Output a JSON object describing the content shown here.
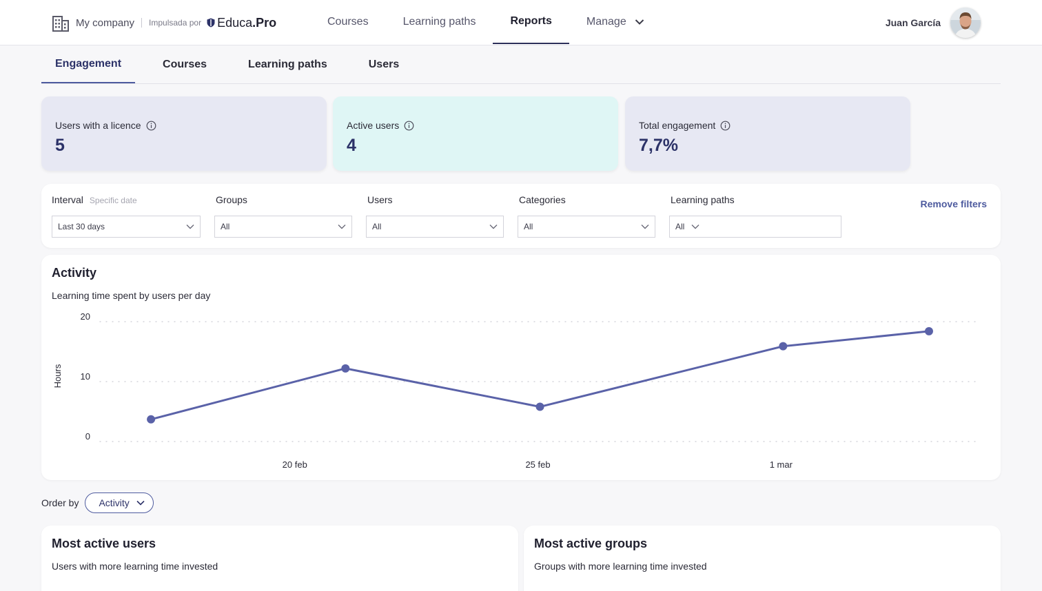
{
  "brand": {
    "company": "My company",
    "powered_by": "Impulsada por",
    "logo_light": "Educa",
    "logo_bold": ".Pro"
  },
  "nav": {
    "items": [
      {
        "label": "Courses"
      },
      {
        "label": "Learning paths"
      },
      {
        "label": "Reports"
      },
      {
        "label": "Manage"
      }
    ],
    "active": "Reports"
  },
  "user": {
    "name": "Juan García"
  },
  "subtabs": {
    "items": [
      {
        "label": "Engagement"
      },
      {
        "label": "Courses"
      },
      {
        "label": "Learning paths"
      },
      {
        "label": "Users"
      }
    ],
    "active": "Engagement"
  },
  "kpis": [
    {
      "label": "Users with a licence",
      "value": "5",
      "color": "#e7e8f3"
    },
    {
      "label": "Active users",
      "value": "4",
      "color": "#dff6f5"
    },
    {
      "label": "Total engagement",
      "value": "7,7%",
      "color": "#e7e8f3"
    }
  ],
  "filters": {
    "interval": {
      "label": "Interval",
      "hint": "Specific date",
      "value": "Last 30 days"
    },
    "groups": {
      "label": "Groups",
      "value": "All"
    },
    "users": {
      "label": "Users",
      "value": "All"
    },
    "categories": {
      "label": "Categories",
      "value": "All"
    },
    "learning_paths": {
      "label": "Learning paths",
      "value": "All"
    },
    "remove_label": "Remove filters"
  },
  "activity": {
    "title": "Activity",
    "subtitle": "Learning time spent by users per day"
  },
  "chart_data": {
    "type": "line",
    "title": "Activity",
    "subtitle": "Learning time spent by users per day",
    "xlabel": "",
    "ylabel": "Hours",
    "x_axis_type": "date",
    "x_ticks": [
      "20 feb",
      "25 feb",
      "1 mar"
    ],
    "x": [
      "17 feb",
      "21 feb",
      "25 feb",
      "1 mar",
      "4 mar"
    ],
    "series": [
      {
        "values": [
          3.7,
          12.2,
          5.8,
          15.9,
          18.4
        ],
        "color": "#5a62a8"
      }
    ],
    "y_ticks": [
      0,
      10,
      20
    ],
    "ylim": [
      0,
      20
    ],
    "grid": true,
    "legend": "none"
  },
  "order_by": {
    "label": "Order by",
    "value": "Activity"
  },
  "cards": {
    "users": {
      "title": "Most active users",
      "subtitle": "Users with more learning time invested"
    },
    "groups": {
      "title": "Most active groups",
      "subtitle": "Groups with more learning time invested"
    }
  },
  "colors": {
    "accent": "#4d5a9e",
    "accent_dark": "#2c3268",
    "line": "#5a62a8"
  }
}
